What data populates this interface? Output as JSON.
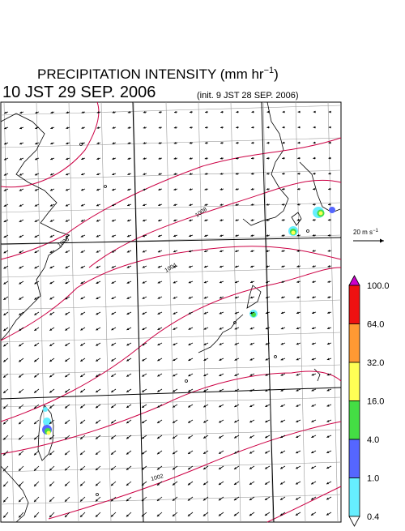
{
  "header": {
    "title_main": "PRECIPITATION INTENSITY (mm hr",
    "title_sup": "−1",
    "title_close": ")",
    "valid_time": "10 JST 29 SEP. 2006",
    "init_time": "(init. 9 JST 28 SEP. 2006)"
  },
  "wind_legend": {
    "label_prefix": "20 m s",
    "label_sup": "−1"
  },
  "colorbar": {
    "levels": [
      {
        "value": "100.0",
        "color": "#cc00cc"
      },
      {
        "value": "64.0",
        "color": "#ee1111"
      },
      {
        "value": "32.0",
        "color": "#ff9933"
      },
      {
        "value": "16.0",
        "color": "#ffff55"
      },
      {
        "value": "4.0",
        "color": "#44dd44"
      },
      {
        "value": "1.0",
        "color": "#5566ff"
      },
      {
        "value": "0.4",
        "color": "#66eeff"
      }
    ]
  },
  "map": {
    "isobar_labels": [
      "1006",
      "1008",
      "1004",
      "1002"
    ],
    "isobar_color": "#cc0044",
    "grid_color": "#999999",
    "coast_color": "#000000",
    "wind_arrow_color": "#000000"
  }
}
